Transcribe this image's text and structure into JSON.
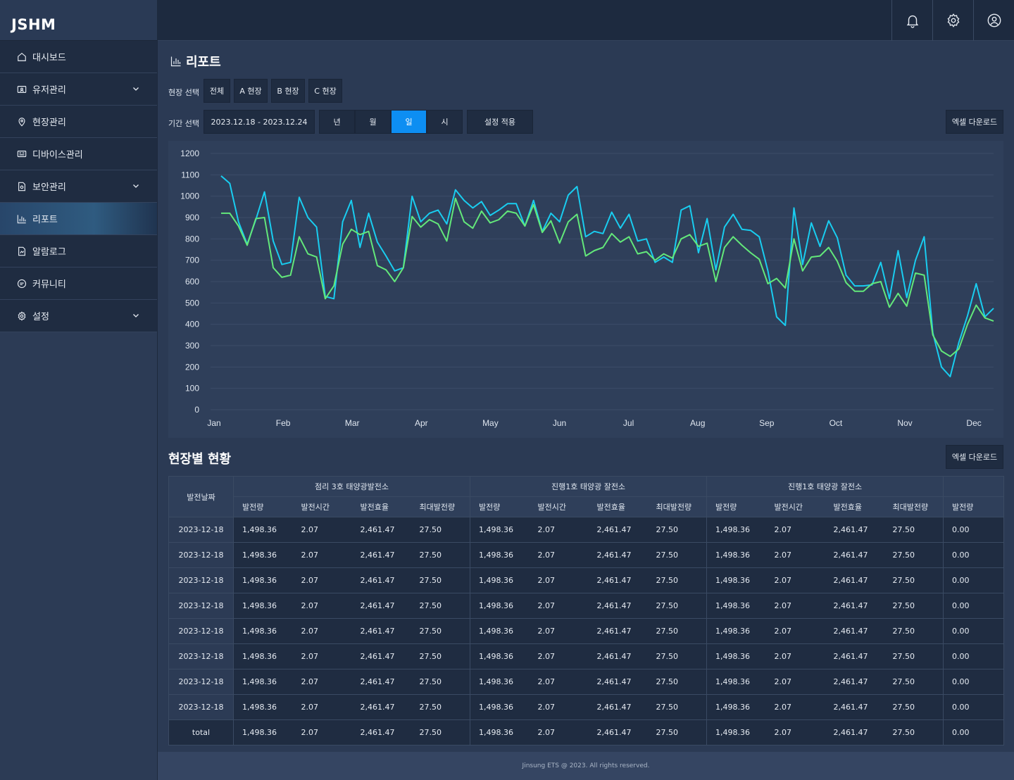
{
  "brand": "JSHM",
  "sidebar": {
    "items": [
      {
        "label": "대시보드",
        "icon": "home-icon",
        "expandable": false
      },
      {
        "label": "유저관리",
        "icon": "user-folder-icon",
        "expandable": true
      },
      {
        "label": "현장관리",
        "icon": "location-pin-icon",
        "expandable": false
      },
      {
        "label": "디바이스관리",
        "icon": "device-icon",
        "expandable": false
      },
      {
        "label": "보안관리",
        "icon": "shield-doc-icon",
        "expandable": true
      },
      {
        "label": "리포트",
        "icon": "bar-chart-icon",
        "expandable": false,
        "active": true
      },
      {
        "label": "알람로그",
        "icon": "alarm-doc-icon",
        "expandable": false
      },
      {
        "label": "커뮤니티",
        "icon": "chat-icon",
        "expandable": false
      },
      {
        "label": "설정",
        "icon": "gear-icon",
        "expandable": true
      }
    ]
  },
  "topbar": {
    "icons": [
      "bell-icon",
      "gear-icon",
      "user-icon"
    ]
  },
  "page": {
    "title": "리포트",
    "site_label": "현장 선택",
    "site_buttons": [
      "전체",
      "A 현장",
      "B 현장",
      "C 현장"
    ],
    "period_label": "기간 선택",
    "date_range": "2023.12.18 - 2023.12.24",
    "period_buttons": [
      "년",
      "월",
      "일",
      "시"
    ],
    "period_selected": "일",
    "apply_label": "설정 적용",
    "excel_label": "엑셀 다운로드",
    "section_title": "현장별 현황",
    "excel_label_2": "엑셀 다운로드"
  },
  "colors": {
    "series_a": "#19cdf0",
    "series_b": "#63e87a",
    "selected": "#0d8ef2"
  },
  "chart_data": {
    "type": "line",
    "x_labels": [
      "Jan",
      "Feb",
      "Mar",
      "Apr",
      "May",
      "Jun",
      "Jul",
      "Aug",
      "Sep",
      "Oct",
      "Nov",
      "Dec"
    ],
    "yticks": [
      0,
      100,
      200,
      300,
      400,
      500,
      600,
      700,
      800,
      900,
      1000,
      1100,
      1200
    ],
    "ylim": [
      0,
      1200
    ],
    "grid": true,
    "series": [
      {
        "color": "#19cdf0",
        "values": [
          1095,
          1060,
          880,
          775,
          890,
          1020,
          790,
          680,
          690,
          995,
          900,
          855,
          530,
          520,
          880,
          980,
          760,
          920,
          785,
          720,
          650,
          665,
          1000,
          880,
          920,
          935,
          870,
          1030,
          980,
          945,
          975,
          910,
          935,
          965,
          965,
          860,
          980,
          835,
          920,
          880,
          1005,
          1045,
          810,
          835,
          825,
          925,
          850,
          915,
          790,
          800,
          690,
          715,
          690,
          935,
          955,
          735,
          895,
          655,
          855,
          915,
          845,
          840,
          810,
          650,
          435,
          395,
          945,
          680,
          875,
          765,
          885,
          805,
          630,
          580,
          580,
          585,
          690,
          520,
          745,
          525,
          700,
          810,
          360,
          200,
          155,
          315,
          440,
          590,
          435,
          475
        ]
      },
      {
        "color": "#63e87a",
        "values": [
          920,
          920,
          860,
          770,
          895,
          900,
          665,
          620,
          630,
          810,
          730,
          715,
          520,
          580,
          775,
          845,
          820,
          835,
          675,
          655,
          600,
          665,
          905,
          855,
          890,
          870,
          790,
          990,
          880,
          850,
          930,
          875,
          890,
          930,
          920,
          860,
          960,
          830,
          885,
          780,
          880,
          915,
          720,
          745,
          760,
          825,
          785,
          810,
          730,
          740,
          700,
          730,
          710,
          800,
          820,
          765,
          780,
          600,
          760,
          810,
          770,
          735,
          705,
          590,
          615,
          570,
          800,
          650,
          715,
          720,
          760,
          695,
          595,
          555,
          555,
          590,
          600,
          480,
          545,
          485,
          640,
          630,
          350,
          275,
          250,
          285,
          400,
          490,
          430,
          415
        ]
      }
    ]
  },
  "table": {
    "date_header": "발전날짜",
    "groups": [
      "점리 3호 태양광발전소",
      "진행1호 태양광 잘전소",
      "진행1호 태양광 잘전소",
      ""
    ],
    "sub_headers": [
      "발전량",
      "발전시간",
      "발전효율",
      "최대발전량"
    ],
    "last_sub_header": "발전량",
    "rows": [
      {
        "date": "2023-12-18",
        "cells": [
          "1,498.36",
          "2.07",
          "2,461.47",
          "27.50",
          "1,498.36",
          "2.07",
          "2,461.47",
          "27.50",
          "1,498.36",
          "2.07",
          "2,461.47",
          "27.50",
          "0.00"
        ]
      },
      {
        "date": "2023-12-18",
        "cells": [
          "1,498.36",
          "2.07",
          "2,461.47",
          "27.50",
          "1,498.36",
          "2.07",
          "2,461.47",
          "27.50",
          "1,498.36",
          "2.07",
          "2,461.47",
          "27.50",
          "0.00"
        ]
      },
      {
        "date": "2023-12-18",
        "cells": [
          "1,498.36",
          "2.07",
          "2,461.47",
          "27.50",
          "1,498.36",
          "2.07",
          "2,461.47",
          "27.50",
          "1,498.36",
          "2.07",
          "2,461.47",
          "27.50",
          "0.00"
        ]
      },
      {
        "date": "2023-12-18",
        "cells": [
          "1,498.36",
          "2.07",
          "2,461.47",
          "27.50",
          "1,498.36",
          "2.07",
          "2,461.47",
          "27.50",
          "1,498.36",
          "2.07",
          "2,461.47",
          "27.50",
          "0.00"
        ]
      },
      {
        "date": "2023-12-18",
        "cells": [
          "1,498.36",
          "2.07",
          "2,461.47",
          "27.50",
          "1,498.36",
          "2.07",
          "2,461.47",
          "27.50",
          "1,498.36",
          "2.07",
          "2,461.47",
          "27.50",
          "0.00"
        ]
      },
      {
        "date": "2023-12-18",
        "cells": [
          "1,498.36",
          "2.07",
          "2,461.47",
          "27.50",
          "1,498.36",
          "2.07",
          "2,461.47",
          "27.50",
          "1,498.36",
          "2.07",
          "2,461.47",
          "27.50",
          "0.00"
        ]
      },
      {
        "date": "2023-12-18",
        "cells": [
          "1,498.36",
          "2.07",
          "2,461.47",
          "27.50",
          "1,498.36",
          "2.07",
          "2,461.47",
          "27.50",
          "1,498.36",
          "2.07",
          "2,461.47",
          "27.50",
          "0.00"
        ]
      },
      {
        "date": "2023-12-18",
        "cells": [
          "1,498.36",
          "2.07",
          "2,461.47",
          "27.50",
          "1,498.36",
          "2.07",
          "2,461.47",
          "27.50",
          "1,498.36",
          "2.07",
          "2,461.47",
          "27.50",
          "0.00"
        ]
      }
    ],
    "total": {
      "date": "total",
      "cells": [
        "1,498.36",
        "2.07",
        "2,461.47",
        "27.50",
        "1,498.36",
        "2.07",
        "2,461.47",
        "27.50",
        "1,498.36",
        "2.07",
        "2,461.47",
        "27.50",
        "0.00"
      ]
    }
  },
  "footer": "Jinsung ETS @ 2023. All rights reserved."
}
